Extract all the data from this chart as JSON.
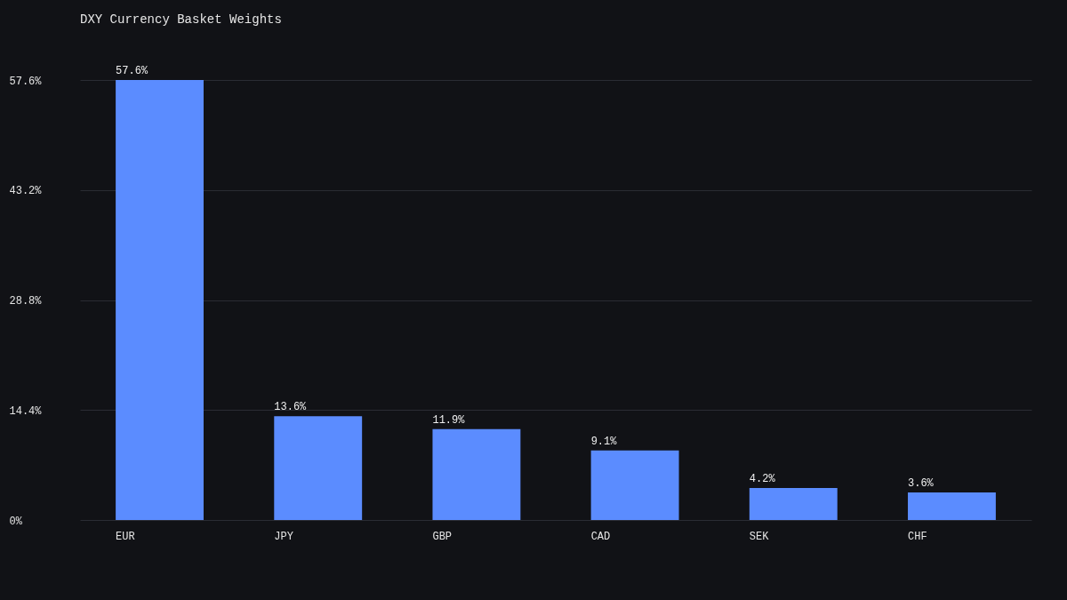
{
  "chart_data": {
    "type": "bar",
    "title": "DXY Currency Basket Weights",
    "categories": [
      "EUR",
      "JPY",
      "GBP",
      "CAD",
      "SEK",
      "CHF"
    ],
    "values": [
      57.6,
      13.6,
      11.9,
      9.1,
      4.2,
      3.6
    ],
    "value_labels": [
      "57.6%",
      "13.6%",
      "11.9%",
      "9.1%",
      "4.2%",
      "3.6%"
    ],
    "color": "#5b8cff",
    "ylim": [
      0,
      57.6
    ],
    "yticks": [
      {
        "value": 0,
        "label": "0%"
      },
      {
        "value": 14.4,
        "label": "14.4%"
      },
      {
        "value": 28.8,
        "label": "28.8%"
      },
      {
        "value": 43.2,
        "label": "43.2%"
      },
      {
        "value": 57.6,
        "label": "57.6%"
      }
    ],
    "grid": "y"
  }
}
